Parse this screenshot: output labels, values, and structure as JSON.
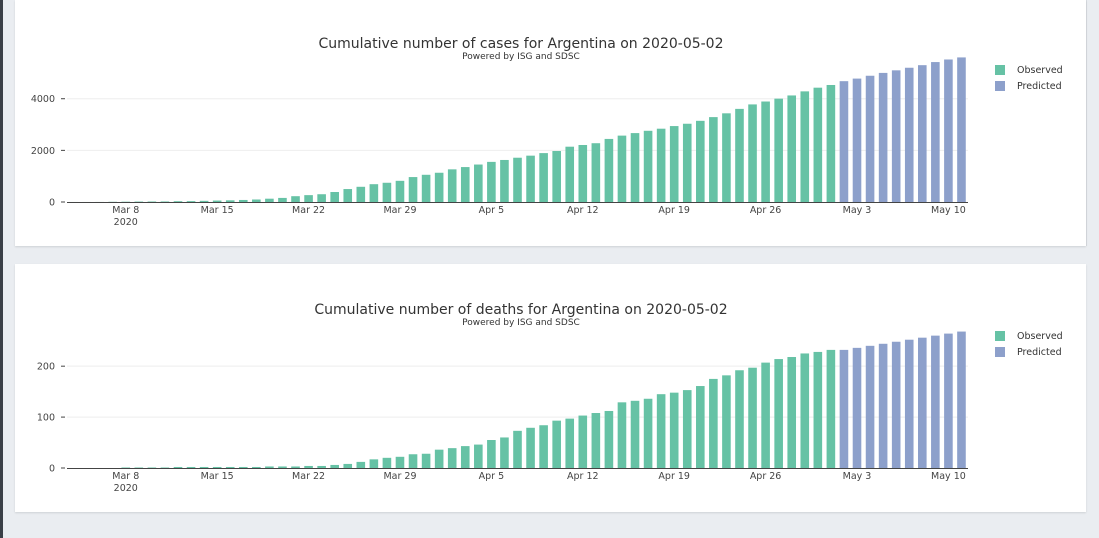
{
  "colors": {
    "observed": "#66c2a5",
    "predicted": "#8da0cb"
  },
  "chart_data": [
    {
      "type": "bar",
      "title": "Cumulative number of cases for Argentina on 2020-05-02",
      "subtitle": "Powered by ISG and SDSC",
      "xlabel": "",
      "ylabel": "",
      "ylim": [
        0,
        5500
      ],
      "yticks": [
        0,
        2000,
        4000
      ],
      "xticks": [
        {
          "label": "Mar 8",
          "index": 4,
          "sub": "2020"
        },
        {
          "label": "Mar 15",
          "index": 11
        },
        {
          "label": "Mar 22",
          "index": 18
        },
        {
          "label": "Mar 29",
          "index": 25
        },
        {
          "label": "Apr 5",
          "index": 32
        },
        {
          "label": "Apr 12",
          "index": 39
        },
        {
          "label": "Apr 19",
          "index": 46
        },
        {
          "label": "Apr 26",
          "index": 53
        },
        {
          "label": "May 3",
          "index": 60
        },
        {
          "label": "May 10",
          "index": 67
        }
      ],
      "start_date": "2020-03-04",
      "series": [
        {
          "name": "Observed",
          "values": [
            1,
            1,
            2,
            8,
            12,
            17,
            19,
            21,
            31,
            34,
            45,
            56,
            65,
            79,
            97,
            128,
            158,
            225,
            266,
            301,
            387,
            502,
            589,
            690,
            745,
            820,
            966,
            1054,
            1133,
            1265,
            1353,
            1451,
            1554,
            1628,
            1715,
            1795,
            1894,
            1975,
            2142,
            2208,
            2277,
            2443,
            2571,
            2669,
            2758,
            2839,
            2941,
            3031,
            3144,
            3288,
            3435,
            3607,
            3780,
            3892,
            4003,
            4127,
            4285,
            4428,
            4532
          ],
          "start_index": 0
        },
        {
          "name": "Predicted",
          "values": [
            4680,
            4780,
            4890,
            5000,
            5100,
            5200,
            5300,
            5420,
            5520,
            5600
          ],
          "start_index": 59
        }
      ],
      "legend": "top-right"
    },
    {
      "type": "bar",
      "title": "Cumulative number of deaths for Argentina on 2020-05-02",
      "subtitle": "Powered by ISG and SDSC",
      "xlabel": "",
      "ylabel": "",
      "ylim": [
        0,
        275
      ],
      "yticks": [
        0,
        100,
        200
      ],
      "xticks": [
        {
          "label": "Mar 8",
          "index": 4,
          "sub": "2020"
        },
        {
          "label": "Mar 15",
          "index": 11
        },
        {
          "label": "Mar 22",
          "index": 18
        },
        {
          "label": "Mar 29",
          "index": 25
        },
        {
          "label": "Apr 5",
          "index": 32
        },
        {
          "label": "Apr 12",
          "index": 39
        },
        {
          "label": "Apr 19",
          "index": 46
        },
        {
          "label": "Apr 26",
          "index": 53
        },
        {
          "label": "May 3",
          "index": 60
        },
        {
          "label": "May 10",
          "index": 67
        }
      ],
      "start_date": "2020-03-04",
      "series": [
        {
          "name": "Observed",
          "values": [
            0,
            0,
            0,
            0,
            1,
            1,
            1,
            1,
            2,
            2,
            2,
            2,
            2,
            2,
            2,
            3,
            3,
            3,
            4,
            4,
            6,
            8,
            12,
            17,
            20,
            22,
            27,
            28,
            36,
            39,
            43,
            46,
            55,
            60,
            73,
            79,
            84,
            93,
            97,
            103,
            108,
            112,
            129,
            132,
            136,
            145,
            148,
            153,
            161,
            175,
            182,
            192,
            197,
            207,
            214,
            218,
            225,
            228,
            232
          ],
          "start_index": 0
        },
        {
          "name": "Predicted",
          "values": [
            232,
            236,
            240,
            244,
            248,
            252,
            256,
            260,
            264,
            268
          ],
          "start_index": 59
        }
      ],
      "legend": "top-right"
    }
  ]
}
